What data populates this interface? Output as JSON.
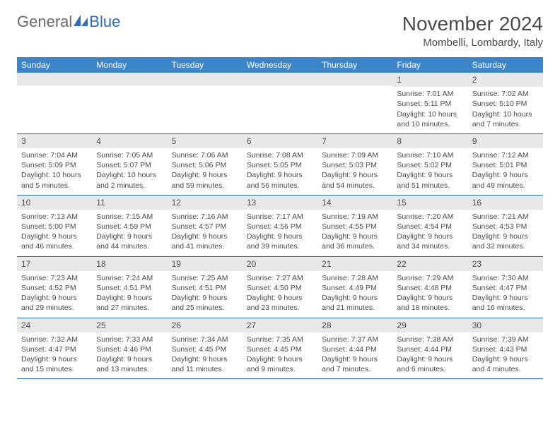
{
  "logo": {
    "general": "General",
    "blue": "Blue"
  },
  "title": "November 2024",
  "location": "Mombelli, Lombardy, Italy",
  "colors": {
    "header_bg": "#3d85c6",
    "header_text": "#ffffff",
    "border": "#2a6db8",
    "daynum_bg": "#e8e8e8",
    "body_text": "#4a4a4a",
    "logo_blue": "#2a6db8"
  },
  "weekdays": [
    "Sunday",
    "Monday",
    "Tuesday",
    "Wednesday",
    "Thursday",
    "Friday",
    "Saturday"
  ],
  "weeks": [
    [
      {
        "n": "",
        "sr": "",
        "ss": "",
        "dl": ""
      },
      {
        "n": "",
        "sr": "",
        "ss": "",
        "dl": ""
      },
      {
        "n": "",
        "sr": "",
        "ss": "",
        "dl": ""
      },
      {
        "n": "",
        "sr": "",
        "ss": "",
        "dl": ""
      },
      {
        "n": "",
        "sr": "",
        "ss": "",
        "dl": ""
      },
      {
        "n": "1",
        "sr": "Sunrise: 7:01 AM",
        "ss": "Sunset: 5:11 PM",
        "dl": "Daylight: 10 hours and 10 minutes."
      },
      {
        "n": "2",
        "sr": "Sunrise: 7:02 AM",
        "ss": "Sunset: 5:10 PM",
        "dl": "Daylight: 10 hours and 7 minutes."
      }
    ],
    [
      {
        "n": "3",
        "sr": "Sunrise: 7:04 AM",
        "ss": "Sunset: 5:09 PM",
        "dl": "Daylight: 10 hours and 5 minutes."
      },
      {
        "n": "4",
        "sr": "Sunrise: 7:05 AM",
        "ss": "Sunset: 5:07 PM",
        "dl": "Daylight: 10 hours and 2 minutes."
      },
      {
        "n": "5",
        "sr": "Sunrise: 7:06 AM",
        "ss": "Sunset: 5:06 PM",
        "dl": "Daylight: 9 hours and 59 minutes."
      },
      {
        "n": "6",
        "sr": "Sunrise: 7:08 AM",
        "ss": "Sunset: 5:05 PM",
        "dl": "Daylight: 9 hours and 56 minutes."
      },
      {
        "n": "7",
        "sr": "Sunrise: 7:09 AM",
        "ss": "Sunset: 5:03 PM",
        "dl": "Daylight: 9 hours and 54 minutes."
      },
      {
        "n": "8",
        "sr": "Sunrise: 7:10 AM",
        "ss": "Sunset: 5:02 PM",
        "dl": "Daylight: 9 hours and 51 minutes."
      },
      {
        "n": "9",
        "sr": "Sunrise: 7:12 AM",
        "ss": "Sunset: 5:01 PM",
        "dl": "Daylight: 9 hours and 49 minutes."
      }
    ],
    [
      {
        "n": "10",
        "sr": "Sunrise: 7:13 AM",
        "ss": "Sunset: 5:00 PM",
        "dl": "Daylight: 9 hours and 46 minutes."
      },
      {
        "n": "11",
        "sr": "Sunrise: 7:15 AM",
        "ss": "Sunset: 4:59 PM",
        "dl": "Daylight: 9 hours and 44 minutes."
      },
      {
        "n": "12",
        "sr": "Sunrise: 7:16 AM",
        "ss": "Sunset: 4:57 PM",
        "dl": "Daylight: 9 hours and 41 minutes."
      },
      {
        "n": "13",
        "sr": "Sunrise: 7:17 AM",
        "ss": "Sunset: 4:56 PM",
        "dl": "Daylight: 9 hours and 39 minutes."
      },
      {
        "n": "14",
        "sr": "Sunrise: 7:19 AM",
        "ss": "Sunset: 4:55 PM",
        "dl": "Daylight: 9 hours and 36 minutes."
      },
      {
        "n": "15",
        "sr": "Sunrise: 7:20 AM",
        "ss": "Sunset: 4:54 PM",
        "dl": "Daylight: 9 hours and 34 minutes."
      },
      {
        "n": "16",
        "sr": "Sunrise: 7:21 AM",
        "ss": "Sunset: 4:53 PM",
        "dl": "Daylight: 9 hours and 32 minutes."
      }
    ],
    [
      {
        "n": "17",
        "sr": "Sunrise: 7:23 AM",
        "ss": "Sunset: 4:52 PM",
        "dl": "Daylight: 9 hours and 29 minutes."
      },
      {
        "n": "18",
        "sr": "Sunrise: 7:24 AM",
        "ss": "Sunset: 4:51 PM",
        "dl": "Daylight: 9 hours and 27 minutes."
      },
      {
        "n": "19",
        "sr": "Sunrise: 7:25 AM",
        "ss": "Sunset: 4:51 PM",
        "dl": "Daylight: 9 hours and 25 minutes."
      },
      {
        "n": "20",
        "sr": "Sunrise: 7:27 AM",
        "ss": "Sunset: 4:50 PM",
        "dl": "Daylight: 9 hours and 23 minutes."
      },
      {
        "n": "21",
        "sr": "Sunrise: 7:28 AM",
        "ss": "Sunset: 4:49 PM",
        "dl": "Daylight: 9 hours and 21 minutes."
      },
      {
        "n": "22",
        "sr": "Sunrise: 7:29 AM",
        "ss": "Sunset: 4:48 PM",
        "dl": "Daylight: 9 hours and 18 minutes."
      },
      {
        "n": "23",
        "sr": "Sunrise: 7:30 AM",
        "ss": "Sunset: 4:47 PM",
        "dl": "Daylight: 9 hours and 16 minutes."
      }
    ],
    [
      {
        "n": "24",
        "sr": "Sunrise: 7:32 AM",
        "ss": "Sunset: 4:47 PM",
        "dl": "Daylight: 9 hours and 15 minutes."
      },
      {
        "n": "25",
        "sr": "Sunrise: 7:33 AM",
        "ss": "Sunset: 4:46 PM",
        "dl": "Daylight: 9 hours and 13 minutes."
      },
      {
        "n": "26",
        "sr": "Sunrise: 7:34 AM",
        "ss": "Sunset: 4:45 PM",
        "dl": "Daylight: 9 hours and 11 minutes."
      },
      {
        "n": "27",
        "sr": "Sunrise: 7:35 AM",
        "ss": "Sunset: 4:45 PM",
        "dl": "Daylight: 9 hours and 9 minutes."
      },
      {
        "n": "28",
        "sr": "Sunrise: 7:37 AM",
        "ss": "Sunset: 4:44 PM",
        "dl": "Daylight: 9 hours and 7 minutes."
      },
      {
        "n": "29",
        "sr": "Sunrise: 7:38 AM",
        "ss": "Sunset: 4:44 PM",
        "dl": "Daylight: 9 hours and 6 minutes."
      },
      {
        "n": "30",
        "sr": "Sunrise: 7:39 AM",
        "ss": "Sunset: 4:43 PM",
        "dl": "Daylight: 9 hours and 4 minutes."
      }
    ]
  ]
}
